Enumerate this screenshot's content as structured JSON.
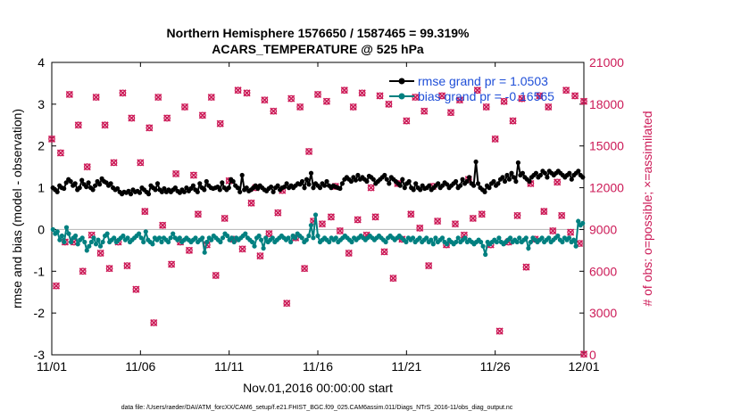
{
  "chart_data": {
    "type": "line",
    "title_line1": "Northern Hemisphere 1576650 / 1587465 = 99.319%",
    "title_line2": "ACARS_TEMPERATURE @ 525 hPa",
    "xlabel": "Nov.01,2016 00:00:00 start",
    "ylabel_left": "rmse and bias (model - observation)",
    "ylabel_right": "# of obs: o=possible; ×=assimilated",
    "xlim": [
      0,
      30
    ],
    "ylim_left": [
      -3,
      4
    ],
    "ylim_right": [
      0,
      21000
    ],
    "x_ticks": [
      0,
      5,
      10,
      15,
      20,
      25,
      30
    ],
    "x_tick_labels": [
      "11/01",
      "11/06",
      "11/11",
      "11/16",
      "11/21",
      "11/26",
      "12/01"
    ],
    "y_ticks_left": [
      -3,
      -2,
      -1,
      0,
      1,
      2,
      3,
      4
    ],
    "y_ticks_right": [
      0,
      3000,
      6000,
      9000,
      12000,
      15000,
      18000,
      21000
    ],
    "legend": [
      {
        "label": "rmse grand pr = 1.0503",
        "color": "#000000"
      },
      {
        "label": "bias grand pr = -0.16565",
        "color": "#008080"
      }
    ],
    "rmse_values": [
      1.0,
      0.95,
      0.9,
      1.05,
      1.0,
      0.98,
      1.12,
      1.2,
      1.15,
      1.05,
      1.1,
      0.95,
      1.0,
      1.18,
      1.08,
      1.02,
      1.12,
      1.0,
      0.95,
      1.05,
      1.15,
      1.08,
      1.22,
      1.15,
      1.12,
      1.05,
      1.1,
      1.0,
      0.95,
      0.98,
      0.9,
      0.85,
      0.9,
      0.88,
      0.92,
      0.85,
      0.95,
      0.9,
      0.92,
      0.88,
      1.0,
      0.95,
      0.9,
      0.85,
      1.05,
      1.0,
      0.95,
      1.1,
      0.95,
      0.9,
      0.98,
      0.9,
      0.95,
      0.9,
      0.95,
      1.0,
      0.92,
      0.88,
      0.95,
      0.9,
      1.0,
      0.92,
      0.98,
      1.05,
      0.95,
      0.9,
      1.1,
      1.0,
      0.95,
      1.15,
      1.05,
      1.0,
      0.98,
      1.0,
      1.02,
      0.95,
      1.12,
      1.0,
      0.95,
      1.0,
      1.2,
      1.15,
      1.05,
      1.0,
      0.9,
      1.3,
      0.95,
      1.0,
      0.92,
      0.95,
      1.0,
      1.05,
      0.98,
      1.05,
      1.0,
      0.95,
      0.92,
      0.98,
      1.02,
      0.9,
      1.0,
      1.05,
      0.95,
      1.0,
      1.02,
      1.1,
      1.0,
      1.05,
      1.0,
      1.05,
      1.1,
      1.08,
      1.15,
      1.0,
      1.2,
      1.08,
      1.35,
      1.0,
      1.1,
      1.05,
      1.0,
      1.1,
      1.05,
      1.15,
      1.05,
      1.0,
      1.05,
      1.02,
      1.0,
      0.98,
      1.1,
      1.2,
      1.25,
      1.2,
      1.15,
      1.25,
      1.18,
      1.3,
      1.2,
      1.25,
      1.2,
      1.15,
      1.28,
      1.25,
      1.2,
      1.1,
      1.15,
      1.2,
      1.25,
      1.3,
      1.2,
      1.1,
      1.25,
      1.2,
      1.15,
      1.1,
      1.05,
      1.2,
      1.0,
      1.1,
      1.15,
      1.0,
      0.95,
      1.1,
      1.0,
      0.95,
      1.05,
      0.98,
      1.0,
      1.05,
      0.95,
      1.0,
      1.05,
      1.1,
      1.0,
      1.05,
      1.12,
      1.08,
      1.0,
      1.05,
      1.1,
      1.15,
      1.0,
      1.05,
      1.2,
      1.1,
      1.15,
      1.25,
      1.1,
      1.05,
      1.62,
      1.1,
      1.0,
      0.95,
      0.9,
      1.05,
      1.0,
      1.1,
      1.15,
      1.05,
      1.1,
      1.2,
      1.25,
      1.15,
      1.3,
      1.2,
      1.35,
      1.25,
      1.15,
      1.6,
      1.3,
      1.35,
      1.25,
      1.2,
      1.15,
      1.25,
      1.3,
      1.35,
      1.25,
      1.3,
      1.4,
      1.35,
      1.25,
      1.4,
      1.35,
      1.3,
      1.35,
      1.4,
      1.35,
      1.3,
      1.25,
      1.3,
      1.35,
      1.2,
      1.3,
      1.35,
      1.4,
      1.3,
      1.25
    ],
    "bias_values": [
      0.0,
      -0.1,
      -0.05,
      -0.25,
      -0.15,
      -0.3,
      0.05,
      -0.1,
      -0.3,
      -0.2,
      -0.15,
      -0.35,
      -0.25,
      -0.2,
      -0.3,
      -0.5,
      -0.4,
      -0.3,
      -0.2,
      -0.35,
      -0.25,
      -0.4,
      -0.3,
      -0.15,
      -0.1,
      -0.3,
      -0.25,
      -0.2,
      -0.3,
      -0.25,
      -0.2,
      -0.15,
      -0.25,
      -0.2,
      -0.3,
      -0.25,
      -0.2,
      -0.15,
      -0.1,
      -0.2,
      -0.3,
      -0.05,
      -0.25,
      -0.3,
      -0.35,
      -0.2,
      -0.25,
      -0.2,
      -0.3,
      -0.2,
      -0.25,
      -0.3,
      -0.2,
      -0.1,
      -0.2,
      -0.25,
      -0.2,
      -0.3,
      -0.25,
      -0.2,
      -0.25,
      -0.3,
      -0.25,
      -0.2,
      -0.3,
      -0.25,
      -0.2,
      -0.55,
      -0.3,
      -0.2,
      -0.25,
      -0.15,
      -0.2,
      -0.25,
      -0.3,
      -0.2,
      -0.1,
      -0.15,
      -0.25,
      -0.2,
      -0.3,
      -0.2,
      -0.25,
      -0.2,
      -0.15,
      -0.1,
      -0.2,
      -0.25,
      -0.3,
      -0.4,
      -0.2,
      -0.15,
      -0.25,
      -0.45,
      -0.2,
      -0.3,
      -0.25,
      -0.2,
      -0.3,
      -0.25,
      -0.2,
      -0.15,
      -0.2,
      -0.25,
      -0.2,
      -0.3,
      -0.15,
      -0.2,
      -0.1,
      -0.15,
      -0.2,
      -0.3,
      -0.25,
      -0.15,
      0.1,
      -0.2,
      0.35,
      -0.15,
      -0.3,
      -0.25,
      -0.2,
      -0.25,
      -0.3,
      -0.2,
      -0.25,
      -0.2,
      -0.3,
      -0.25,
      -0.2,
      -0.15,
      -0.2,
      -0.25,
      -0.3,
      -0.2,
      -0.25,
      -0.2,
      -0.15,
      -0.2,
      -0.25,
      -0.2,
      -0.15,
      -0.2,
      -0.25,
      -0.2,
      -0.15,
      -0.2,
      -0.25,
      -0.3,
      -0.2,
      -0.15,
      -0.2,
      -0.25,
      -0.2,
      -0.15,
      -0.2,
      -0.25,
      -0.3,
      -0.2,
      -0.25,
      -0.2,
      -0.3,
      -0.25,
      -0.2,
      -0.3,
      -0.25,
      -0.2,
      -0.3,
      -0.25,
      -0.35,
      -0.2,
      -0.3,
      -0.25,
      -0.2,
      -0.3,
      -0.35,
      -0.25,
      -0.3,
      -0.35,
      -0.3,
      -0.2,
      -0.3,
      -0.25,
      -0.2,
      -0.3,
      -0.25,
      -0.3,
      -0.35,
      -0.3,
      -0.25,
      -0.3,
      -0.4,
      -0.6,
      -0.3,
      -0.35,
      -0.3,
      -0.25,
      -0.3,
      -0.2,
      -0.3,
      -0.35,
      -0.3,
      -0.25,
      -0.2,
      -0.3,
      -0.25,
      -0.3,
      -0.2,
      -0.3,
      -0.25,
      -0.2,
      -0.45,
      -0.3,
      -0.2,
      -0.25,
      -0.3,
      -0.25,
      -0.2,
      -0.3,
      -0.25,
      -0.2,
      -0.3,
      -0.25,
      -0.2,
      -0.15,
      -0.25,
      -0.3,
      -0.2,
      -0.25,
      -0.2,
      -0.3,
      -0.25,
      -0.4,
      0.2,
      0.1,
      0.15
    ],
    "obs_points": [
      [
        0.0,
        15500
      ],
      [
        0.5,
        14500
      ],
      [
        1.0,
        18700
      ],
      [
        1.5,
        16500
      ],
      [
        2.0,
        13500
      ],
      [
        2.5,
        18500
      ],
      [
        3.0,
        16500
      ],
      [
        3.5,
        13800
      ],
      [
        4.0,
        18800
      ],
      [
        4.5,
        17000
      ],
      [
        5.0,
        13800
      ],
      [
        5.5,
        16300
      ],
      [
        6.0,
        18500
      ],
      [
        6.5,
        17000
      ],
      [
        7.0,
        13000
      ],
      [
        7.5,
        17800
      ],
      [
        8.0,
        12900
      ],
      [
        8.5,
        17200
      ],
      [
        9.0,
        18500
      ],
      [
        9.5,
        16600
      ],
      [
        10.0,
        12500
      ],
      [
        10.5,
        19000
      ],
      [
        11.0,
        18800
      ],
      [
        11.5,
        12000
      ],
      [
        12.0,
        18300
      ],
      [
        12.5,
        17500
      ],
      [
        13.0,
        11800
      ],
      [
        13.5,
        18400
      ],
      [
        14.0,
        17800
      ],
      [
        14.5,
        14600
      ],
      [
        15.0,
        18700
      ],
      [
        15.5,
        18200
      ],
      [
        16.0,
        12100
      ],
      [
        16.5,
        19000
      ],
      [
        17.0,
        17800
      ],
      [
        17.5,
        18800
      ],
      [
        18.0,
        12000
      ],
      [
        18.5,
        18600
      ],
      [
        19.0,
        18000
      ],
      [
        19.5,
        12300
      ],
      [
        20.0,
        16800
      ],
      [
        20.5,
        18500
      ],
      [
        21.0,
        17500
      ],
      [
        21.5,
        12100
      ],
      [
        22.0,
        18600
      ],
      [
        22.5,
        17400
      ],
      [
        23.0,
        18300
      ],
      [
        23.5,
        12600
      ],
      [
        24.0,
        19000
      ],
      [
        24.5,
        17800
      ],
      [
        25.0,
        15500
      ],
      [
        25.5,
        18200
      ],
      [
        26.0,
        16800
      ],
      [
        26.5,
        18400
      ],
      [
        27.0,
        12300
      ],
      [
        27.5,
        18600
      ],
      [
        28.0,
        17800
      ],
      [
        28.5,
        12400
      ],
      [
        29.0,
        19000
      ],
      [
        29.5,
        18600
      ],
      [
        30.0,
        18200
      ],
      [
        0.25,
        4950
      ],
      [
        0.75,
        8100
      ],
      [
        1.25,
        8100
      ],
      [
        1.75,
        6000
      ],
      [
        2.25,
        8600
      ],
      [
        2.75,
        7300
      ],
      [
        3.25,
        6200
      ],
      [
        3.75,
        8100
      ],
      [
        4.25,
        6400
      ],
      [
        4.75,
        4700
      ],
      [
        5.25,
        10300
      ],
      [
        5.75,
        2300
      ],
      [
        6.25,
        9300
      ],
      [
        6.75,
        6500
      ],
      [
        7.25,
        8100
      ],
      [
        7.75,
        7500
      ],
      [
        8.25,
        10100
      ],
      [
        8.75,
        7900
      ],
      [
        9.25,
        5700
      ],
      [
        9.75,
        9800
      ],
      [
        10.25,
        8300
      ],
      [
        10.75,
        7600
      ],
      [
        11.25,
        10900
      ],
      [
        11.75,
        7100
      ],
      [
        12.25,
        8700
      ],
      [
        12.75,
        10200
      ],
      [
        13.25,
        3700
      ],
      [
        13.75,
        8400
      ],
      [
        14.25,
        6200
      ],
      [
        14.75,
        9600
      ],
      [
        15.25,
        9400
      ],
      [
        15.75,
        9900
      ],
      [
        16.25,
        8900
      ],
      [
        16.75,
        7300
      ],
      [
        17.25,
        9700
      ],
      [
        17.75,
        8600
      ],
      [
        18.25,
        9900
      ],
      [
        18.75,
        7400
      ],
      [
        19.25,
        5500
      ],
      [
        19.75,
        8300
      ],
      [
        20.25,
        10100
      ],
      [
        20.75,
        9100
      ],
      [
        21.25,
        6400
      ],
      [
        21.75,
        9600
      ],
      [
        22.25,
        7900
      ],
      [
        22.75,
        9400
      ],
      [
        23.25,
        8600
      ],
      [
        23.75,
        9800
      ],
      [
        24.25,
        10100
      ],
      [
        24.75,
        7900
      ],
      [
        25.25,
        1700
      ],
      [
        25.75,
        8100
      ],
      [
        26.25,
        10000
      ],
      [
        26.75,
        6300
      ],
      [
        27.25,
        8300
      ],
      [
        27.75,
        10300
      ],
      [
        28.25,
        8900
      ],
      [
        28.75,
        10000
      ],
      [
        29.25,
        8800
      ],
      [
        29.75,
        8000
      ],
      [
        30.0,
        50
      ]
    ],
    "footer_note": "data file: /Users/raeder/DAI/ATM_forcXX/CAM6_setup/f.e21.FHIST_BGC.f09_025.CAM6assim.011/Diags_NTrS_2016-11/obs_diag_output.nc"
  },
  "colors": {
    "rmse": "#000000",
    "bias": "#008080",
    "obs": "#cc1a57",
    "legend_text": "#1f4fd8",
    "zero_line": "#b4b4b4"
  }
}
